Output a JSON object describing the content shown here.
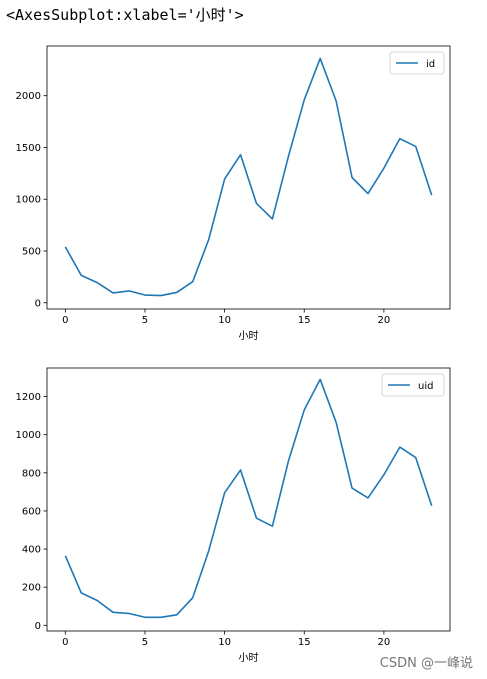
{
  "output_repr": "<AxesSubplot:xlabel='小时'>",
  "watermark": "CSDN @一峰说",
  "chart_data": [
    {
      "type": "line",
      "xlabel": "小时",
      "ylabel": "",
      "x": [
        0,
        1,
        2,
        3,
        4,
        5,
        6,
        7,
        8,
        9,
        10,
        11,
        12,
        13,
        14,
        15,
        16,
        17,
        18,
        19,
        20,
        21,
        22,
        23
      ],
      "xticks": [
        0,
        5,
        10,
        15,
        20
      ],
      "yticks": [
        0,
        500,
        1000,
        1500,
        2000
      ],
      "xlim": [
        -1.15,
        24.15
      ],
      "ylim": [
        -60,
        2480
      ],
      "legend_position": "top-right",
      "grid": false,
      "series": [
        {
          "name": "id",
          "color": "#1f77b4",
          "values": [
            540,
            265,
            195,
            95,
            115,
            75,
            70,
            100,
            205,
            610,
            1195,
            1430,
            960,
            810,
            1410,
            1960,
            2360,
            1950,
            1210,
            1055,
            1300,
            1585,
            1510,
            1040
          ]
        }
      ]
    },
    {
      "type": "line",
      "xlabel": "小时",
      "ylabel": "",
      "x": [
        0,
        1,
        2,
        3,
        4,
        5,
        6,
        7,
        8,
        9,
        10,
        11,
        12,
        13,
        14,
        15,
        16,
        17,
        18,
        19,
        20,
        21,
        22,
        23
      ],
      "xticks": [
        0,
        5,
        10,
        15,
        20
      ],
      "yticks": [
        0,
        200,
        400,
        600,
        800,
        1000,
        1200
      ],
      "xlim": [
        -1.15,
        24.15
      ],
      "ylim": [
        -30,
        1350
      ],
      "legend_position": "top-right",
      "grid": false,
      "series": [
        {
          "name": "uid",
          "color": "#1f77b4",
          "values": [
            365,
            170,
            130,
            68,
            62,
            42,
            42,
            55,
            145,
            390,
            695,
            815,
            562,
            520,
            860,
            1130,
            1290,
            1065,
            720,
            668,
            790,
            935,
            880,
            627
          ]
        }
      ]
    }
  ]
}
